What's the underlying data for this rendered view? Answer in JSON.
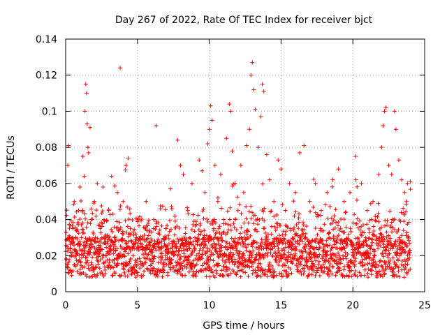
{
  "chart_data": {
    "type": "scatter",
    "title": "Day 267 of 2022, Rate Of TEC Index for receiver bjct",
    "xlabel": "GPS time / hours",
    "ylabel": "ROTI / TECUs",
    "xlim": [
      0,
      25
    ],
    "ylim": [
      0,
      0.14
    ],
    "xticks": [
      0,
      5,
      10,
      15,
      20,
      25
    ],
    "xtick_labels": [
      "0",
      "5",
      "10",
      "15",
      "20",
      "25"
    ],
    "yticks": [
      0,
      0.02,
      0.04,
      0.06,
      0.08,
      0.1,
      0.12,
      0.14
    ],
    "ytick_labels": [
      "0",
      "0.02",
      "0.04",
      "0.06",
      "0.08",
      "0.1",
      "0.12",
      "0.14"
    ],
    "grid": true,
    "marker": "+",
    "color": "#ff0000",
    "data_x_range": [
      0,
      24
    ],
    "series": [
      {
        "name": "ROTI",
        "points": [
          [
            0.05,
            0.018
          ],
          [
            0.1,
            0.025
          ],
          [
            0.15,
            0.07
          ],
          [
            0.2,
            0.081
          ],
          [
            0.25,
            0.03
          ],
          [
            0.3,
            0.012
          ],
          [
            0.4,
            0.02
          ],
          [
            0.5,
            0.035
          ],
          [
            0.6,
            0.05
          ],
          [
            0.7,
            0.022
          ],
          [
            0.8,
            0.015
          ],
          [
            0.9,
            0.045
          ],
          [
            1.0,
            0.058
          ],
          [
            1.1,
            0.03
          ],
          [
            1.2,
            0.075
          ],
          [
            1.3,
            0.064
          ],
          [
            1.35,
            0.1
          ],
          [
            1.4,
            0.115
          ],
          [
            1.45,
            0.11
          ],
          [
            1.5,
            0.093
          ],
          [
            1.55,
            0.08
          ],
          [
            1.6,
            0.077
          ],
          [
            1.7,
            0.091
          ],
          [
            1.8,
            0.04
          ],
          [
            1.9,
            0.025
          ],
          [
            2.0,
            0.05
          ],
          [
            2.2,
            0.06
          ],
          [
            2.4,
            0.035
          ],
          [
            2.6,
            0.058
          ],
          [
            2.8,
            0.02
          ],
          [
            3.0,
            0.045
          ],
          [
            3.2,
            0.064
          ],
          [
            3.4,
            0.03
          ],
          [
            3.6,
            0.055
          ],
          [
            3.8,
            0.124
          ],
          [
            4.0,
            0.05
          ],
          [
            4.2,
            0.07
          ],
          [
            4.35,
            0.074
          ],
          [
            4.5,
            0.035
          ],
          [
            4.7,
            0.02
          ],
          [
            5.0,
            0.04
          ],
          [
            5.3,
            0.025
          ],
          [
            5.6,
            0.05
          ],
          [
            6.0,
            0.033
          ],
          [
            6.3,
            0.092
          ],
          [
            6.6,
            0.046
          ],
          [
            7.0,
            0.035
          ],
          [
            7.3,
            0.057
          ],
          [
            7.6,
            0.025
          ],
          [
            7.8,
            0.084
          ],
          [
            8.0,
            0.07
          ],
          [
            8.2,
            0.065
          ],
          [
            8.5,
            0.045
          ],
          [
            8.8,
            0.06
          ],
          [
            9.0,
            0.03
          ],
          [
            9.3,
            0.073
          ],
          [
            9.5,
            0.067
          ],
          [
            9.7,
            0.055
          ],
          [
            9.9,
            0.082
          ],
          [
            10.0,
            0.09
          ],
          [
            10.1,
            0.103
          ],
          [
            10.2,
            0.095
          ],
          [
            10.4,
            0.07
          ],
          [
            10.6,
            0.05
          ],
          [
            10.8,
            0.065
          ],
          [
            11.0,
            0.04
          ],
          [
            11.2,
            0.085
          ],
          [
            11.4,
            0.104
          ],
          [
            11.5,
            0.1
          ],
          [
            11.6,
            0.078
          ],
          [
            11.8,
            0.06
          ],
          [
            12.0,
            0.045
          ],
          [
            12.2,
            0.07
          ],
          [
            12.4,
            0.055
          ],
          [
            12.6,
            0.081
          ],
          [
            12.8,
            0.09
          ],
          [
            12.9,
            0.12
          ],
          [
            13.0,
            0.127
          ],
          [
            13.1,
            0.112
          ],
          [
            13.2,
            0.101
          ],
          [
            13.4,
            0.08
          ],
          [
            13.6,
            0.097
          ],
          [
            13.7,
            0.115
          ],
          [
            13.8,
            0.111
          ],
          [
            14.0,
            0.076
          ],
          [
            14.2,
            0.062
          ],
          [
            14.5,
            0.05
          ],
          [
            14.8,
            0.073
          ],
          [
            15.0,
            0.068
          ],
          [
            15.3,
            0.045
          ],
          [
            15.6,
            0.06
          ],
          [
            16.0,
            0.055
          ],
          [
            16.3,
            0.077
          ],
          [
            16.6,
            0.081
          ],
          [
            17.0,
            0.05
          ],
          [
            17.4,
            0.06
          ],
          [
            17.8,
            0.045
          ],
          [
            18.2,
            0.055
          ],
          [
            18.6,
            0.062
          ],
          [
            19.0,
            0.068
          ],
          [
            19.4,
            0.05
          ],
          [
            19.8,
            0.055
          ],
          [
            20.2,
            0.075
          ],
          [
            20.6,
            0.06
          ],
          [
            21.0,
            0.045
          ],
          [
            21.4,
            0.05
          ],
          [
            21.8,
            0.065
          ],
          [
            22.0,
            0.08
          ],
          [
            22.1,
            0.092
          ],
          [
            22.2,
            0.1
          ],
          [
            22.3,
            0.102
          ],
          [
            22.5,
            0.07
          ],
          [
            22.7,
            0.065
          ],
          [
            22.9,
            0.1
          ],
          [
            23.0,
            0.09
          ],
          [
            23.2,
            0.073
          ],
          [
            23.4,
            0.062
          ],
          [
            23.6,
            0.055
          ],
          [
            23.8,
            0.06
          ],
          [
            24.0,
            0.061
          ]
        ]
      }
    ]
  }
}
